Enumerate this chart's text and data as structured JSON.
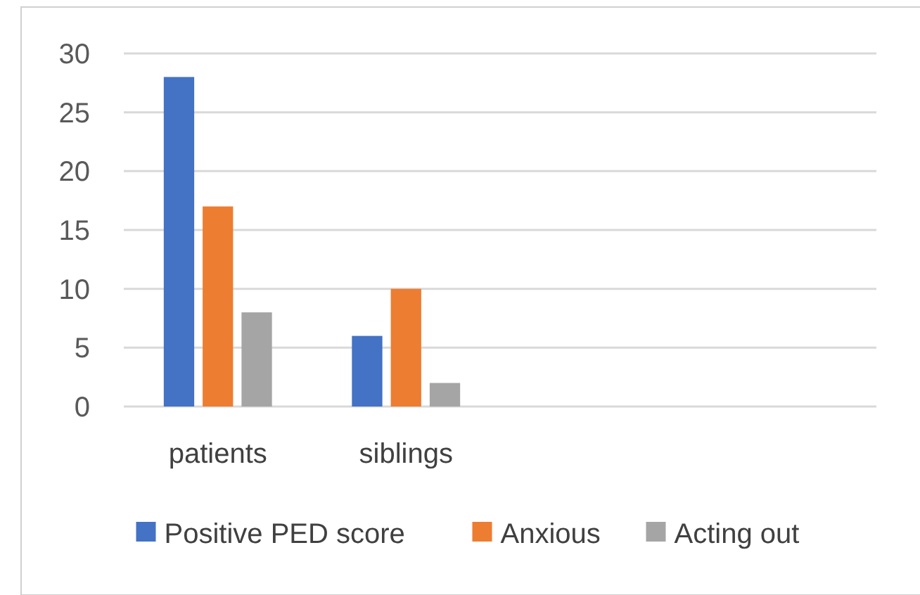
{
  "chart_data": {
    "type": "bar",
    "categories": [
      "patients",
      "siblings",
      null,
      null
    ],
    "series": [
      {
        "name": "Positive PED score",
        "color": "#4472c4",
        "values": [
          28,
          6,
          null,
          null
        ]
      },
      {
        "name": "Anxious",
        "color": "#ed7d31",
        "values": [
          17,
          10,
          null,
          null
        ]
      },
      {
        "name": "Acting out",
        "color": "#a5a5a5",
        "values": [
          8,
          2,
          null,
          null
        ]
      }
    ],
    "ylim": [
      0,
      30
    ],
    "yticks": [
      0,
      5,
      10,
      15,
      20,
      25,
      30
    ],
    "grid": "y",
    "legend": "bottom"
  }
}
